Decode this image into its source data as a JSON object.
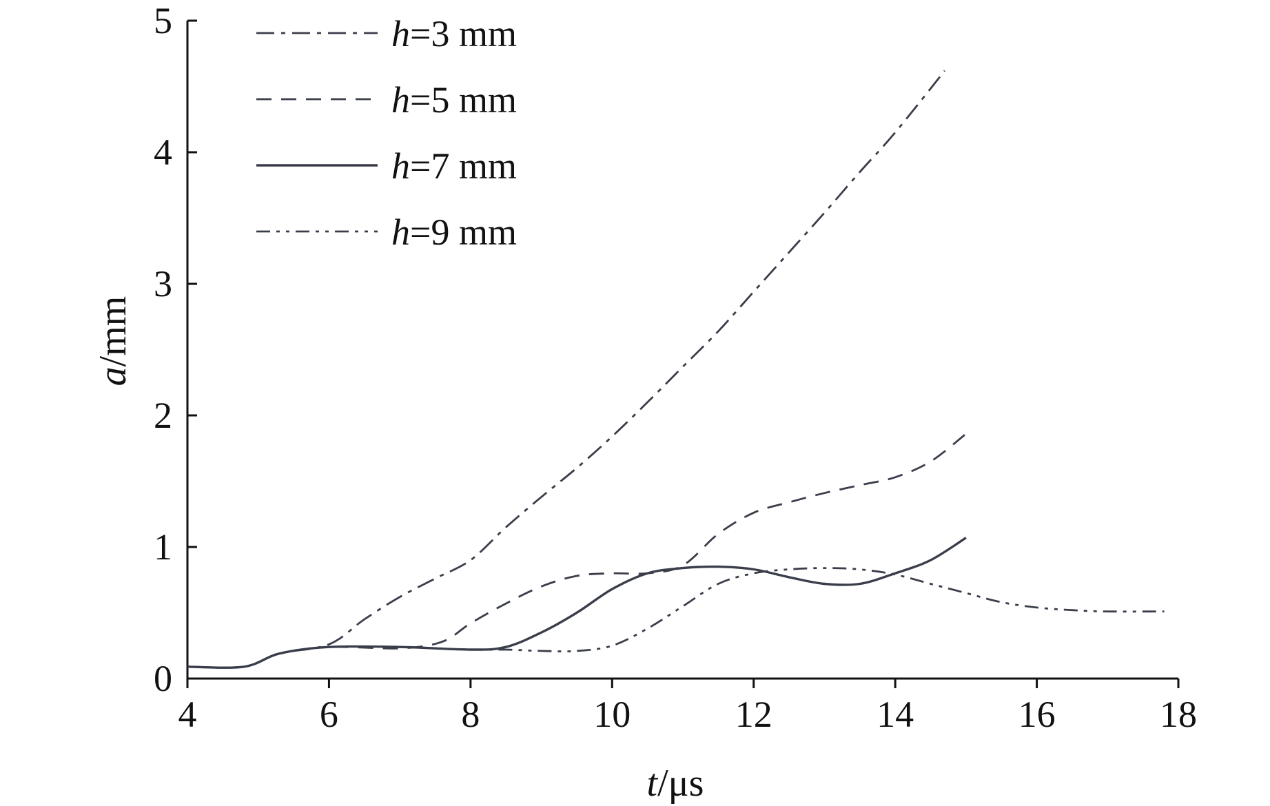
{
  "chart_data": {
    "type": "line",
    "title": "",
    "xlabel": {
      "var": "t",
      "unit": "/μs"
    },
    "ylabel": {
      "var": "a",
      "unit": "/mm"
    },
    "xlim": [
      4,
      18
    ],
    "ylim": [
      0,
      5
    ],
    "xticks": [
      4,
      6,
      8,
      10,
      12,
      14,
      16,
      18
    ],
    "yticks": [
      0,
      1,
      2,
      3,
      4,
      5
    ],
    "grid": false,
    "legend_position": "top-left",
    "series": [
      {
        "name": "h=3 mm",
        "var": "h",
        "value": "=3 mm",
        "style": "dash-dot",
        "x": [
          4,
          4.8,
          5.3,
          6,
          6.5,
          7,
          7.5,
          8,
          8.5,
          9,
          9.5,
          10,
          10.5,
          11,
          11.5,
          12,
          12.5,
          13,
          13.5,
          14,
          14.7
        ],
        "y": [
          0.09,
          0.09,
          0.19,
          0.26,
          0.45,
          0.62,
          0.76,
          0.9,
          1.15,
          1.38,
          1.6,
          1.84,
          2.1,
          2.37,
          2.64,
          2.94,
          3.24,
          3.54,
          3.85,
          4.15,
          4.62
        ]
      },
      {
        "name": "h=5 mm",
        "var": "h",
        "value": "=5 mm",
        "style": "dash",
        "x": [
          4,
          4.8,
          5.3,
          6,
          7,
          7.6,
          8,
          8.5,
          9,
          9.5,
          10,
          10.5,
          11,
          11.5,
          12,
          12.5,
          13,
          13.5,
          14,
          14.5,
          15
        ],
        "y": [
          0.09,
          0.09,
          0.19,
          0.24,
          0.23,
          0.28,
          0.42,
          0.57,
          0.7,
          0.78,
          0.8,
          0.8,
          0.86,
          1.1,
          1.26,
          1.34,
          1.41,
          1.47,
          1.53,
          1.65,
          1.86
        ]
      },
      {
        "name": "h=7 mm",
        "var": "h",
        "value": "=7 mm",
        "style": "solid",
        "x": [
          4,
          4.8,
          5.3,
          6,
          7,
          8,
          8.5,
          9,
          9.5,
          10,
          10.5,
          11,
          11.5,
          12,
          12.5,
          13,
          13.5,
          14,
          14.5,
          15
        ],
        "y": [
          0.09,
          0.09,
          0.19,
          0.24,
          0.24,
          0.22,
          0.24,
          0.35,
          0.5,
          0.68,
          0.8,
          0.84,
          0.85,
          0.83,
          0.77,
          0.72,
          0.72,
          0.8,
          0.9,
          1.07
        ]
      },
      {
        "name": "h=9 mm",
        "var": "h",
        "value": "=9 mm",
        "style": "dash-dot-dot",
        "x": [
          4,
          4.8,
          5.3,
          6,
          7,
          8,
          8.5,
          9,
          9.5,
          10,
          10.5,
          11,
          11.5,
          12,
          12.5,
          13,
          13.5,
          14,
          14.5,
          15,
          15.5,
          16,
          16.5,
          17,
          17.8
        ],
        "y": [
          0.09,
          0.09,
          0.19,
          0.24,
          0.24,
          0.22,
          0.22,
          0.21,
          0.21,
          0.25,
          0.38,
          0.55,
          0.72,
          0.8,
          0.83,
          0.84,
          0.83,
          0.79,
          0.72,
          0.65,
          0.58,
          0.54,
          0.52,
          0.51,
          0.51
        ]
      }
    ]
  }
}
